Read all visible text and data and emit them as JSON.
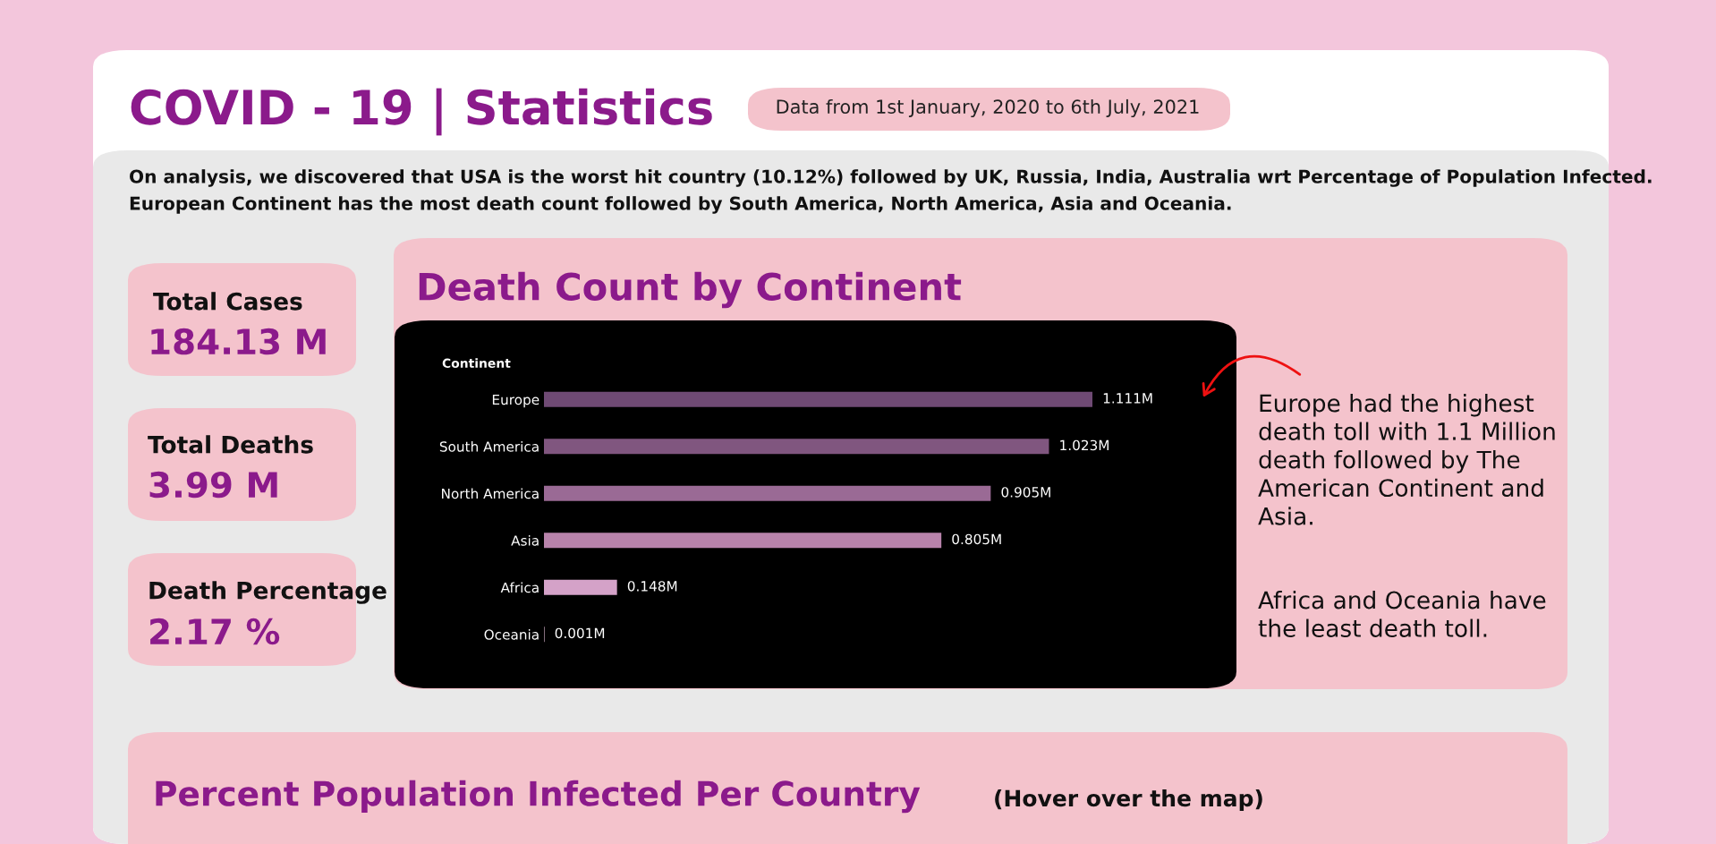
{
  "chart_data": [
    {
      "type": "other",
      "title": "COVID - 19 | Statistics",
      "subtitle": "Data from 1st January, 2020 to 6th July, 2021",
      "annotations": [
        "On analysis, we discovered that USA is the worst hit country (10.12%) followed by UK, Russia, India, Australia wrt Percentage of Population Infected.",
        "European Continent has the most death count followed by South America, North America, Asia and Oceania.",
        "Total Cases",
        "184.13 M",
        "Total Deaths",
        "3.99 M",
        "Death Percentage",
        "2.17 %"
      ]
    },
    {
      "type": "bar",
      "orientation": "horizontal",
      "title": "Death Count by Continent",
      "ylabel": "Continent",
      "categories": [
        "Europe",
        "South America",
        "North America",
        "Asia",
        "Africa",
        "Oceania"
      ],
      "values": [
        1.111,
        1.023,
        0.905,
        0.805,
        0.148,
        0.001
      ],
      "value_labels": [
        "1.111M",
        "1.023M",
        "0.905M",
        "0.805M",
        "0.148M",
        "0.001M"
      ],
      "colors": [
        "#6f4a74",
        "#80567f",
        "#9a6a95",
        "#b883ab",
        "#d4a2c8",
        "#f0c8e4"
      ],
      "annotations": [
        "Europe had the highest\ndeath toll with 1.1 Million\ndeath followed by The\nAmerican Continent and\nAsia.",
        "Africa and Oceania have\nthe least death toll."
      ]
    },
    {
      "type": "other",
      "title": "Percent Population Infected Per Country",
      "subtitle": "(Hover over the map)"
    }
  ]
}
